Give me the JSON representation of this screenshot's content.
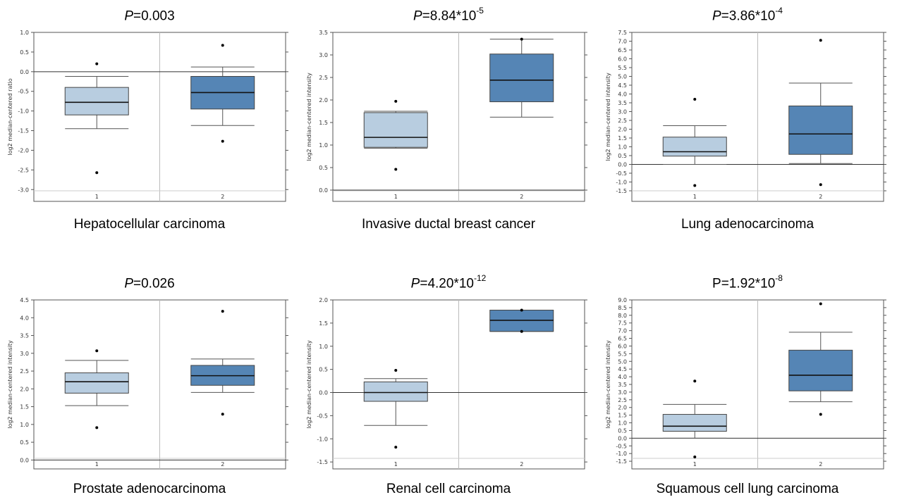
{
  "colors": {
    "group1": "#b8cde0",
    "group2": "#5585b5",
    "frame": "#555555",
    "divider": "#bbbbbb"
  },
  "chart_data": [
    {
      "type": "box",
      "title": {
        "prefix": "P",
        "rest": "=0.003",
        "exp": "",
        "italic": true
      },
      "caption": "Hepatocellular carcinoma",
      "ylabel": "log2 median-centered ratio",
      "ylim": [
        -3.3,
        1.0
      ],
      "yticks": [
        "1.0",
        "0.5",
        "0.0",
        "-0.5",
        "-1.0",
        "-1.5",
        "-2.0",
        "-2.5",
        "-3.0"
      ],
      "categories": [
        "1",
        "2"
      ],
      "boxes": [
        {
          "q1": -1.1,
          "median": -0.78,
          "q3": -0.4,
          "wlo": -1.45,
          "whi": -0.12,
          "outliers": [
            0.2,
            -2.57
          ]
        },
        {
          "q1": -0.95,
          "median": -0.53,
          "q3": -0.12,
          "wlo": -1.37,
          "whi": 0.12,
          "outliers": [
            0.67,
            -1.77
          ]
        }
      ]
    },
    {
      "type": "box",
      "title": {
        "prefix": "P",
        "rest": "=8.84*10",
        "exp": "-5",
        "italic": true
      },
      "caption": "Invasive ductal breast cancer",
      "ylabel": "log2 median-centered intensity",
      "ylim": [
        -0.25,
        3.5
      ],
      "yticks": [
        "3.5",
        "3.0",
        "2.5",
        "2.0",
        "1.5",
        "1.0",
        "0.5",
        "0.0"
      ],
      "categories": [
        "1",
        "2"
      ],
      "boxes": [
        {
          "q1": 0.95,
          "median": 1.17,
          "q3": 1.72,
          "wlo": 0.93,
          "whi": 1.75,
          "outliers": [
            1.97,
            0.46
          ]
        },
        {
          "q1": 1.96,
          "median": 2.44,
          "q3": 3.02,
          "wlo": 1.62,
          "whi": 3.35,
          "outliers": [
            3.35
          ]
        }
      ]
    },
    {
      "type": "box",
      "title": {
        "prefix": "P",
        "rest": "=3.86*10",
        "exp": "-4",
        "italic": true
      },
      "caption": "Lung adenocarcinoma",
      "ylabel": "log2 median-centered intensity",
      "ylim": [
        -2.1,
        7.5
      ],
      "yticks": [
        "7.5",
        "7.0",
        "6.5",
        "6.0",
        "5.5",
        "5.0",
        "4.5",
        "4.0",
        "3.5",
        "3.0",
        "2.5",
        "2.0",
        "1.5",
        "1.0",
        "0.5",
        "0.0",
        "-0.5",
        "-1.0",
        "-1.5"
      ],
      "categories": [
        "1",
        "2"
      ],
      "boxes": [
        {
          "q1": 0.47,
          "median": 0.72,
          "q3": 1.55,
          "wlo": 0.0,
          "whi": 2.2,
          "outliers": [
            3.7,
            -1.2
          ]
        },
        {
          "q1": 0.57,
          "median": 1.73,
          "q3": 3.32,
          "wlo": 0.05,
          "whi": 4.62,
          "outliers": [
            7.05,
            -1.15
          ]
        }
      ]
    },
    {
      "type": "box",
      "title": {
        "prefix": "P",
        "rest": "=0.026",
        "exp": "",
        "italic": true
      },
      "caption": "Prostate adenocarcinoma",
      "ylabel": "log2 median-centered intensity",
      "ylim": [
        -0.25,
        4.5
      ],
      "yticks": [
        "4.5",
        "4.0",
        "3.5",
        "3.0",
        "2.5",
        "2.0",
        "1.5",
        "1.0",
        "0.5",
        "0.0"
      ],
      "categories": [
        "1",
        "2"
      ],
      "boxes": [
        {
          "q1": 1.88,
          "median": 2.2,
          "q3": 2.45,
          "wlo": 1.53,
          "whi": 2.8,
          "outliers": [
            3.07,
            0.91
          ]
        },
        {
          "q1": 2.1,
          "median": 2.37,
          "q3": 2.66,
          "wlo": 1.9,
          "whi": 2.84,
          "outliers": [
            4.18,
            1.29
          ]
        }
      ]
    },
    {
      "type": "box",
      "title": {
        "prefix": "P",
        "rest": "=4.20*10",
        "exp": "-12",
        "italic": true
      },
      "caption": "Renal cell carcinoma",
      "ylabel": "log2 median-centered intensity",
      "ylim": [
        -1.65,
        2.0
      ],
      "yticks": [
        "2.0",
        "1.5",
        "1.0",
        "0.5",
        "0.0",
        "-0.5",
        "-1.0",
        "-1.5"
      ],
      "categories": [
        "1",
        "2"
      ],
      "boxes": [
        {
          "q1": -0.19,
          "median": 0.0,
          "q3": 0.23,
          "wlo": -0.71,
          "whi": 0.3,
          "outliers": [
            0.48,
            -1.18
          ]
        },
        {
          "q1": 1.32,
          "median": 1.56,
          "q3": 1.78,
          "wlo": 1.32,
          "whi": 1.78,
          "outliers": [
            1.78,
            1.32
          ]
        }
      ]
    },
    {
      "type": "box",
      "title": {
        "prefix": "",
        "rest": "P=1.92*10",
        "exp": "-8",
        "italic": false
      },
      "caption": "Squamous cell lung carcinoma",
      "ylabel": "log2 median-centered intensity",
      "ylim": [
        -2.0,
        9.0
      ],
      "yticks": [
        "9.0",
        "8.5",
        "8.0",
        "7.5",
        "7.0",
        "6.5",
        "6.0",
        "5.5",
        "5.0",
        "4.5",
        "4.0",
        "3.5",
        "3.0",
        "2.5",
        "2.0",
        "1.5",
        "1.0",
        "0.5",
        "0.0",
        "-0.5",
        "-1.0",
        "-1.5"
      ],
      "categories": [
        "1",
        "2"
      ],
      "boxes": [
        {
          "q1": 0.45,
          "median": 0.78,
          "q3": 1.55,
          "wlo": 0.0,
          "whi": 2.2,
          "outliers": [
            3.72,
            -1.22
          ]
        },
        {
          "q1": 3.08,
          "median": 4.1,
          "q3": 5.73,
          "wlo": 2.37,
          "whi": 6.9,
          "outliers": [
            8.75,
            1.55
          ]
        }
      ]
    }
  ]
}
